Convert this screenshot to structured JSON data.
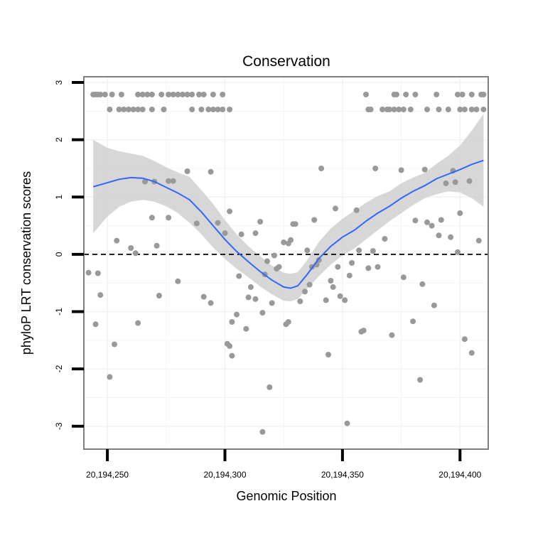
{
  "chart_data": {
    "type": "scatter",
    "title": "Conservation",
    "xlabel": "Genomic Position",
    "ylabel": "phyloP LRT conservation scores",
    "xlim": [
      20194240,
      20194412
    ],
    "ylim": [
      -3.4,
      3.1
    ],
    "x_ticks": [
      20194250,
      20194300,
      20194350,
      20194400
    ],
    "x_tick_labels": [
      "20,194,250",
      "20,194,300",
      "20,194,350",
      "20,194,400"
    ],
    "y_ticks": [
      -3,
      -2,
      -1,
      0,
      1,
      2,
      3
    ],
    "y_tick_labels": [
      "-3",
      "-2",
      "-1",
      "0",
      "1",
      "2",
      "3"
    ],
    "reference_line_y": 0,
    "colors": {
      "points": "#999999",
      "smooth_line": "#3366FF",
      "confidence_band": "#D3D3D3",
      "reference_line": "#000000",
      "panel_border": "#7f7f7f",
      "gridline": "#f2f2f2"
    },
    "points": [
      [
        20194244,
        2.79
      ],
      [
        20194245,
        2.79
      ],
      [
        20194246,
        2.79
      ],
      [
        20194247,
        2.79
      ],
      [
        20194249,
        2.79
      ],
      [
        20194252,
        2.79
      ],
      [
        20194256,
        2.79
      ],
      [
        20194263,
        2.79
      ],
      [
        20194265,
        2.79
      ],
      [
        20194267,
        2.79
      ],
      [
        20194269,
        2.79
      ],
      [
        20194273,
        2.79
      ],
      [
        20194276,
        2.79
      ],
      [
        20194278,
        2.79
      ],
      [
        20194280,
        2.79
      ],
      [
        20194282,
        2.79
      ],
      [
        20194284,
        2.79
      ],
      [
        20194286,
        2.79
      ],
      [
        20194289,
        2.79
      ],
      [
        20194291,
        2.79
      ],
      [
        20194295,
        2.79
      ],
      [
        20194299,
        2.79
      ],
      [
        20194360,
        2.79
      ],
      [
        20194372,
        2.79
      ],
      [
        20194373,
        2.79
      ],
      [
        20194377,
        2.79
      ],
      [
        20194381,
        2.79
      ],
      [
        20194390,
        2.79
      ],
      [
        20194399,
        2.79
      ],
      [
        20194401,
        2.79
      ],
      [
        20194405,
        2.79
      ],
      [
        20194409,
        2.79
      ],
      [
        20194410,
        2.79
      ],
      [
        20194251,
        2.53
      ],
      [
        20194255,
        2.53
      ],
      [
        20194257,
        2.53
      ],
      [
        20194259,
        2.53
      ],
      [
        20194261,
        2.53
      ],
      [
        20194263,
        2.53
      ],
      [
        20194265,
        2.53
      ],
      [
        20194269,
        2.53
      ],
      [
        20194274,
        2.53
      ],
      [
        20194286,
        2.53
      ],
      [
        20194290,
        2.53
      ],
      [
        20194293,
        2.53
      ],
      [
        20194295,
        2.53
      ],
      [
        20194297,
        2.53
      ],
      [
        20194299,
        2.53
      ],
      [
        20194302,
        2.53
      ],
      [
        20194361,
        2.53
      ],
      [
        20194362,
        2.53
      ],
      [
        20194367,
        2.53
      ],
      [
        20194369,
        2.53
      ],
      [
        20194370,
        2.53
      ],
      [
        20194372,
        2.53
      ],
      [
        20194374,
        2.53
      ],
      [
        20194376,
        2.53
      ],
      [
        20194379,
        2.53
      ],
      [
        20194386,
        2.53
      ],
      [
        20194391,
        2.53
      ],
      [
        20194395,
        2.53
      ],
      [
        20194400,
        2.53
      ],
      [
        20194402,
        2.53
      ],
      [
        20194405,
        2.53
      ],
      [
        20194407,
        2.53
      ],
      [
        20194410,
        2.53
      ],
      [
        20194294,
        1.44
      ],
      [
        20194284,
        1.45
      ],
      [
        20194276,
        1.28
      ],
      [
        20194278,
        1.28
      ],
      [
        20194266,
        1.27
      ],
      [
        20194270,
        1.27
      ],
      [
        20194269,
        0.64
      ],
      [
        20194276,
        0.64
      ],
      [
        20194260,
        0.11
      ],
      [
        20194262,
        0.02
      ],
      [
        20194254,
        0.24
      ],
      [
        20194271,
        0.15
      ],
      [
        20194288,
        0.54
      ],
      [
        20194297,
        0.55
      ],
      [
        20194242,
        -0.32
      ],
      [
        20194246,
        -0.33
      ],
      [
        20194247,
        -0.71
      ],
      [
        20194245,
        -1.22
      ],
      [
        20194251,
        -2.14
      ],
      [
        20194253,
        -1.57
      ],
      [
        20194263,
        -1.2
      ],
      [
        20194272,
        -0.72
      ],
      [
        20194280,
        -0.47
      ],
      [
        20194291,
        -0.74
      ],
      [
        20194294,
        -0.85
      ],
      [
        20194300,
        0.37
      ],
      [
        20194302,
        0.75
      ],
      [
        20194306,
        -0.38
      ],
      [
        20194305,
        -1.05
      ],
      [
        20194303,
        -1.18
      ],
      [
        20194301,
        -1.56
      ],
      [
        20194302,
        -1.6
      ],
      [
        20194303,
        -1.77
      ],
      [
        20194307,
        0.35
      ],
      [
        20194309,
        -1.3
      ],
      [
        20194311,
        -0.57
      ],
      [
        20194310,
        -0.75
      ],
      [
        20194313,
        -0.78
      ],
      [
        20194313,
        0.37
      ],
      [
        20194315,
        0.57
      ],
      [
        20194316,
        -1.02
      ],
      [
        20194317,
        -0.35
      ],
      [
        20194318,
        -0.12
      ],
      [
        20194316,
        -3.1
      ],
      [
        20194319,
        -2.32
      ],
      [
        20194320,
        -0.85
      ],
      [
        20194321,
        -0.02
      ],
      [
        20194322,
        -0.25
      ],
      [
        20194323,
        -0.22
      ],
      [
        20194325,
        0.21
      ],
      [
        20194327,
        0.19
      ],
      [
        20194326,
        -1.22
      ],
      [
        20194327,
        -1.18
      ],
      [
        20194328,
        0.25
      ],
      [
        20194329,
        0.53
      ],
      [
        20194330,
        0.53
      ],
      [
        20194332,
        -0.82
      ],
      [
        20194334,
        -0.65
      ],
      [
        20194335,
        0.07
      ],
      [
        20194336,
        -0.53
      ],
      [
        20194337,
        -0.22
      ],
      [
        20194338,
        0.6
      ],
      [
        20194339,
        -0.18
      ],
      [
        20194341,
        1.5
      ],
      [
        20194340,
        -0.1
      ],
      [
        20194343,
        -0.8
      ],
      [
        20194344,
        -1.75
      ],
      [
        20194345,
        -0.46
      ],
      [
        20194346,
        -0.57
      ],
      [
        20194347,
        0.8
      ],
      [
        20194348,
        -0.22
      ],
      [
        20194349,
        -0.73
      ],
      [
        20194351,
        -0.8
      ],
      [
        20194352,
        -2.95
      ],
      [
        20194353,
        -0.37
      ],
      [
        20194354,
        -0.15
      ],
      [
        20194356,
        0.77
      ],
      [
        20194357,
        0.07
      ],
      [
        20194358,
        -1.35
      ],
      [
        20194359,
        -1.33
      ],
      [
        20194361,
        -0.24
      ],
      [
        20194363,
        0.06
      ],
      [
        20194365,
        -0.22
      ],
      [
        20194364,
        1.5
      ],
      [
        20194368,
        0.27
      ],
      [
        20194371,
        -1.41
      ],
      [
        20194375,
        1.47
      ],
      [
        20194376,
        -0.4
      ],
      [
        20194380,
        -1.17
      ],
      [
        20194381,
        0.59
      ],
      [
        20194383,
        -2.19
      ],
      [
        20194384,
        -0.52
      ],
      [
        20194385,
        1.48
      ],
      [
        20194386,
        0.56
      ],
      [
        20194388,
        0.5
      ],
      [
        20194389,
        -0.89
      ],
      [
        20194391,
        0.33
      ],
      [
        20194392,
        0.6
      ],
      [
        20194394,
        1.24
      ],
      [
        20194396,
        0.3
      ],
      [
        20194397,
        1.46
      ],
      [
        20194398,
        1.26
      ],
      [
        20194399,
        0.04
      ],
      [
        20194400,
        0.72
      ],
      [
        20194402,
        -1.48
      ],
      [
        20194404,
        1.28
      ],
      [
        20194405,
        -1.72
      ],
      [
        20194408,
        0.24
      ]
    ],
    "smooth": {
      "x": [
        20194244,
        20194250,
        20194255,
        20194260,
        20194265,
        20194270,
        20194275,
        20194280,
        20194285,
        20194290,
        20194295,
        20194300,
        20194305,
        20194310,
        20194315,
        20194320,
        20194325,
        20194328,
        20194331,
        20194335,
        20194340,
        20194345,
        20194350,
        20194355,
        20194360,
        20194365,
        20194370,
        20194375,
        20194380,
        20194385,
        20194390,
        20194395,
        20194400,
        20194405,
        20194410
      ],
      "y": [
        1.18,
        1.25,
        1.31,
        1.34,
        1.33,
        1.27,
        1.17,
        1.07,
        0.95,
        0.74,
        0.5,
        0.26,
        0.05,
        -0.13,
        -0.3,
        -0.45,
        -0.57,
        -0.59,
        -0.55,
        -0.35,
        -0.07,
        0.14,
        0.3,
        0.42,
        0.58,
        0.72,
        0.84,
        0.98,
        1.1,
        1.2,
        1.32,
        1.4,
        1.48,
        1.57,
        1.64
      ],
      "lower": [
        0.37,
        0.66,
        0.83,
        0.92,
        0.95,
        0.92,
        0.84,
        0.72,
        0.55,
        0.35,
        0.12,
        -0.08,
        -0.25,
        -0.4,
        -0.56,
        -0.7,
        -0.81,
        -0.82,
        -0.78,
        -0.6,
        -0.38,
        -0.18,
        -0.02,
        0.1,
        0.26,
        0.42,
        0.58,
        0.72,
        0.86,
        0.98,
        1.05,
        1.1,
        1.08,
        0.98,
        0.83
      ],
      "upper": [
        2.0,
        1.86,
        1.8,
        1.76,
        1.72,
        1.63,
        1.52,
        1.43,
        1.35,
        1.12,
        0.88,
        0.6,
        0.35,
        0.14,
        -0.03,
        -0.2,
        -0.32,
        -0.34,
        -0.31,
        -0.1,
        0.22,
        0.45,
        0.62,
        0.76,
        0.9,
        1.02,
        1.1,
        1.24,
        1.34,
        1.42,
        1.58,
        1.72,
        1.9,
        2.16,
        2.45
      ]
    }
  }
}
